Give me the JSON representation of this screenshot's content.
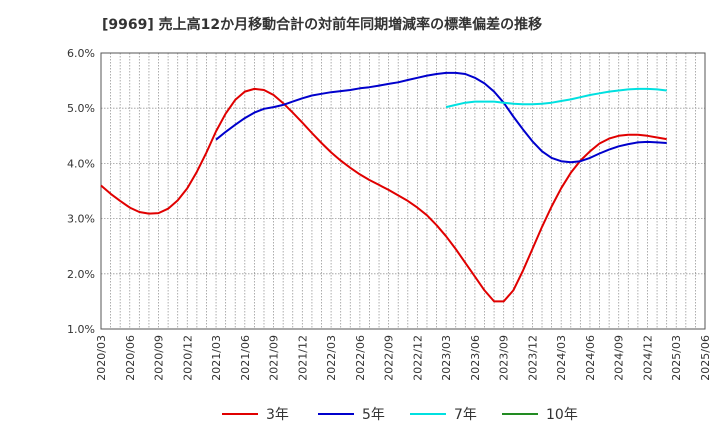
{
  "chart_data": {
    "type": "line",
    "title": "[9969]  売上高12か月移動合計の対前年同期増減率の標準偏差の推移",
    "xlabel": "",
    "ylabel": "",
    "ylim": [
      1.0,
      6.0
    ],
    "y_ticks": [
      "1.0%",
      "2.0%",
      "3.0%",
      "4.0%",
      "5.0%",
      "6.0%"
    ],
    "x_ticks": [
      "2020/03",
      "2020/06",
      "2020/09",
      "2020/12",
      "2021/03",
      "2021/06",
      "2021/09",
      "2021/12",
      "2022/03",
      "2022/06",
      "2022/09",
      "2022/12",
      "2023/03",
      "2023/06",
      "2023/09",
      "2023/12",
      "2024/03",
      "2024/06",
      "2024/09",
      "2024/12",
      "2025/03",
      "2025/06"
    ],
    "grid": true,
    "legend_position": "bottom",
    "series": [
      {
        "name": "3年",
        "color": "#e00000",
        "values": [
          3.6,
          3.45,
          3.32,
          3.2,
          3.12,
          3.09,
          3.1,
          3.18,
          3.33,
          3.55,
          3.85,
          4.2,
          4.58,
          4.9,
          5.15,
          5.3,
          5.35,
          5.33,
          5.24,
          5.09,
          4.92,
          4.74,
          4.55,
          4.37,
          4.2,
          4.05,
          3.92,
          3.8,
          3.7,
          3.61,
          3.52,
          3.42,
          3.32,
          3.2,
          3.06,
          2.88,
          2.68,
          2.45,
          2.2,
          1.95,
          1.7,
          1.5,
          1.5,
          1.7,
          2.05,
          2.45,
          2.85,
          3.22,
          3.55,
          3.83,
          4.05,
          4.22,
          4.36,
          4.45,
          4.5,
          4.52,
          4.52,
          4.5,
          4.47,
          4.44
        ]
      },
      {
        "name": "5年",
        "color": "#0000cc",
        "values": [
          null,
          null,
          null,
          null,
          null,
          null,
          null,
          null,
          null,
          null,
          null,
          null,
          4.43,
          4.57,
          4.7,
          4.82,
          4.92,
          4.99,
          5.02,
          5.06,
          5.12,
          5.18,
          5.23,
          5.26,
          5.29,
          5.31,
          5.33,
          5.36,
          5.38,
          5.41,
          5.44,
          5.47,
          5.51,
          5.55,
          5.59,
          5.62,
          5.64,
          5.64,
          5.62,
          5.55,
          5.45,
          5.3,
          5.1,
          4.85,
          4.62,
          4.4,
          4.22,
          4.1,
          4.04,
          4.02,
          4.04,
          4.1,
          4.18,
          4.25,
          4.31,
          4.35,
          4.38,
          4.39,
          4.38,
          4.37
        ]
      },
      {
        "name": "7年",
        "color": "#00e0e0",
        "values": [
          null,
          null,
          null,
          null,
          null,
          null,
          null,
          null,
          null,
          null,
          null,
          null,
          null,
          null,
          null,
          null,
          null,
          null,
          null,
          null,
          null,
          null,
          null,
          null,
          null,
          null,
          null,
          null,
          null,
          null,
          null,
          null,
          null,
          null,
          null,
          null,
          5.02,
          5.06,
          5.1,
          5.12,
          5.12,
          5.12,
          5.1,
          5.08,
          5.07,
          5.07,
          5.08,
          5.1,
          5.13,
          5.16,
          5.2,
          5.24,
          5.27,
          5.3,
          5.32,
          5.34,
          5.35,
          5.35,
          5.34,
          5.32
        ]
      },
      {
        "name": "10年",
        "color": "#228b22",
        "values": []
      }
    ]
  }
}
